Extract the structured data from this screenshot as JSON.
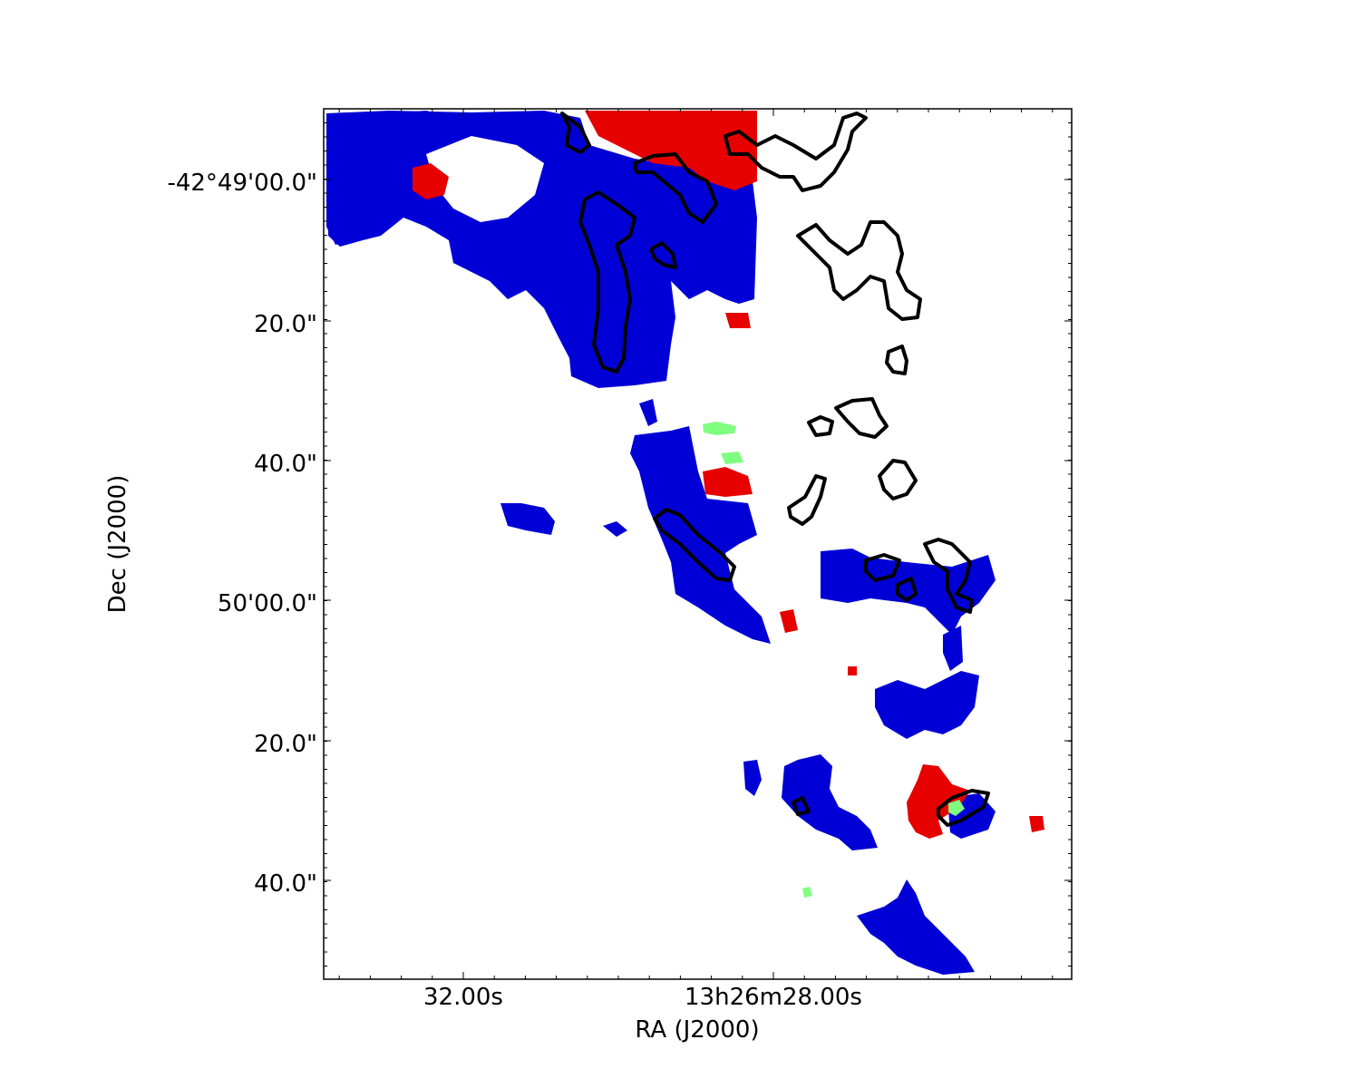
{
  "chart_data": {
    "type": "map",
    "xlabel": "RA (J2000)",
    "ylabel": "Dec (J2000)",
    "x_tick_labels": [
      "32.00s",
      "13h26m28.00s"
    ],
    "y_tick_labels": [
      "-42°49'00.0\"",
      "20.0\"",
      "40.0\"",
      "50'00.0\"",
      "20.0\"",
      "40.0\""
    ],
    "legend": "none",
    "grid": false,
    "colors": {
      "blue_component": "#0000d6",
      "red_component": "#e60000",
      "green_component": "#7fff7f",
      "contours": "#000000"
    }
  }
}
